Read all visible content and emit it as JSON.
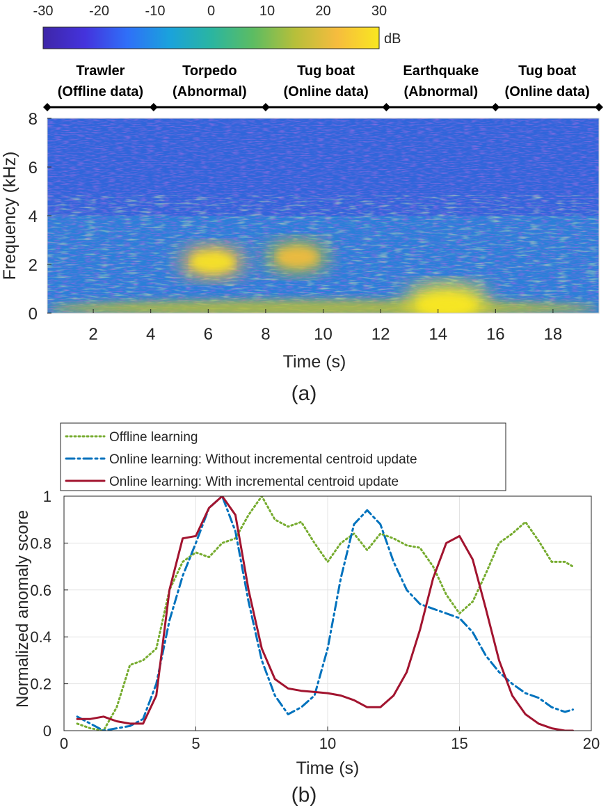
{
  "colorbar": {
    "ticks": [
      -30,
      -20,
      -10,
      0,
      10,
      20,
      30
    ],
    "unit": "dB",
    "range": [
      -30,
      30
    ],
    "colormap": [
      "#3e26a8",
      "#4433dd",
      "#2f6ff8",
      "#1aa2dc",
      "#2ab5a1",
      "#5cbc62",
      "#b7bf3a",
      "#f6bc3e",
      "#f9e720"
    ]
  },
  "panel_a": {
    "caption": "(a)",
    "segments": [
      {
        "line1": "Trawler",
        "line2": "(Offline data)",
        "start": 0.4,
        "end": 4.1
      },
      {
        "line1": "Torpedo",
        "line2": "(Abnormal)",
        "start": 4.1,
        "end": 8.0
      },
      {
        "line1": "Tug boat",
        "line2": "(Online data)",
        "start": 8.0,
        "end": 12.2
      },
      {
        "line1": "Earthquake",
        "line2": "(Abnormal)",
        "start": 12.2,
        "end": 16.0
      },
      {
        "line1": "Tug boat",
        "line2": "(Online data)",
        "start": 16.0,
        "end": 19.6
      }
    ],
    "xlabel": "Time (s)",
    "ylabel": "Frequency (kHz)",
    "xticks": [
      2,
      4,
      6,
      8,
      10,
      12,
      14,
      16,
      18
    ],
    "yticks": [
      0,
      2,
      4,
      6,
      8
    ],
    "xlim": [
      0.4,
      19.6
    ],
    "ylim": [
      0,
      8
    ],
    "energy_regions": [
      {
        "label": "low band",
        "t_start": 0.4,
        "t_end": 19.6,
        "f_center": 0.3,
        "level_db": 15
      },
      {
        "label": "torpedo",
        "t_start": 5.0,
        "t_end": 7.3,
        "f_center": 2.1,
        "level_db": 22
      },
      {
        "label": "tug boat",
        "t_start": 8.0,
        "t_end": 10.2,
        "f_center": 2.3,
        "level_db": 14
      },
      {
        "label": "earthquake",
        "t_start": 12.8,
        "t_end": 15.8,
        "f_center": 0.5,
        "level_db": 28
      }
    ]
  },
  "chart_data": {
    "type": "line",
    "title": "",
    "caption": "(b)",
    "xlabel": "Time (s)",
    "ylabel": "Normalized anomaly score",
    "xlim": [
      0,
      20
    ],
    "ylim": [
      0,
      1
    ],
    "xticks": [
      0,
      5,
      10,
      15,
      20
    ],
    "yticks": [
      0,
      0.2,
      0.4,
      0.6,
      0.8,
      1
    ],
    "grid": true,
    "legend_position": "top-left, above plot",
    "series": [
      {
        "name": "Offline learning",
        "color": "#77ac30",
        "style": "dotted",
        "x": [
          0.5,
          1.0,
          1.5,
          2.0,
          2.5,
          3.0,
          3.5,
          4.0,
          4.5,
          5.0,
          5.5,
          6.0,
          6.5,
          7.0,
          7.5,
          8.0,
          8.5,
          9.0,
          9.5,
          10.0,
          10.5,
          11.0,
          11.5,
          12.0,
          12.5,
          13.0,
          13.5,
          14.0,
          14.5,
          15.0,
          15.5,
          16.0,
          16.5,
          17.0,
          17.5,
          18.0,
          18.5,
          19.0,
          19.3
        ],
        "y": [
          0.03,
          0.01,
          0.0,
          0.1,
          0.28,
          0.3,
          0.35,
          0.6,
          0.72,
          0.76,
          0.74,
          0.8,
          0.82,
          0.92,
          1.0,
          0.9,
          0.87,
          0.89,
          0.8,
          0.72,
          0.8,
          0.84,
          0.77,
          0.84,
          0.82,
          0.79,
          0.78,
          0.7,
          0.58,
          0.5,
          0.55,
          0.67,
          0.8,
          0.84,
          0.89,
          0.81,
          0.72,
          0.72,
          0.7
        ]
      },
      {
        "name": "Online learning: Without incremental centroid update",
        "color": "#0072bd",
        "style": "dashdot",
        "x": [
          0.5,
          1.0,
          1.5,
          2.0,
          2.5,
          3.0,
          3.5,
          4.0,
          4.5,
          5.0,
          5.5,
          6.0,
          6.5,
          7.0,
          7.5,
          8.0,
          8.5,
          9.0,
          9.5,
          10.0,
          10.5,
          11.0,
          11.5,
          12.0,
          12.5,
          13.0,
          13.5,
          14.0,
          14.5,
          15.0,
          15.5,
          16.0,
          16.5,
          17.0,
          17.5,
          18.0,
          18.5,
          19.0,
          19.3
        ],
        "y": [
          0.06,
          0.03,
          0.0,
          0.01,
          0.02,
          0.05,
          0.2,
          0.47,
          0.66,
          0.8,
          0.95,
          1.0,
          0.85,
          0.55,
          0.3,
          0.15,
          0.07,
          0.1,
          0.15,
          0.35,
          0.65,
          0.88,
          0.94,
          0.88,
          0.72,
          0.6,
          0.54,
          0.52,
          0.5,
          0.48,
          0.42,
          0.32,
          0.25,
          0.2,
          0.16,
          0.14,
          0.1,
          0.08,
          0.09
        ]
      },
      {
        "name": "Online learning: With incremental centroid update",
        "color": "#a2142f",
        "style": "solid",
        "x": [
          0.5,
          1.0,
          1.5,
          2.0,
          2.5,
          3.0,
          3.5,
          4.0,
          4.5,
          5.0,
          5.5,
          6.0,
          6.5,
          7.0,
          7.5,
          8.0,
          8.5,
          9.0,
          9.5,
          10.0,
          10.5,
          11.0,
          11.5,
          12.0,
          12.5,
          13.0,
          13.5,
          14.0,
          14.5,
          15.0,
          15.5,
          16.0,
          16.5,
          17.0,
          17.5,
          18.0,
          18.5,
          19.0,
          19.3
        ],
        "y": [
          0.05,
          0.05,
          0.06,
          0.04,
          0.03,
          0.03,
          0.15,
          0.6,
          0.82,
          0.83,
          0.95,
          1.0,
          0.92,
          0.6,
          0.35,
          0.22,
          0.18,
          0.17,
          0.165,
          0.16,
          0.15,
          0.13,
          0.1,
          0.1,
          0.15,
          0.25,
          0.43,
          0.65,
          0.8,
          0.83,
          0.73,
          0.52,
          0.3,
          0.15,
          0.07,
          0.03,
          0.01,
          0.0,
          0.0
        ]
      }
    ]
  }
}
